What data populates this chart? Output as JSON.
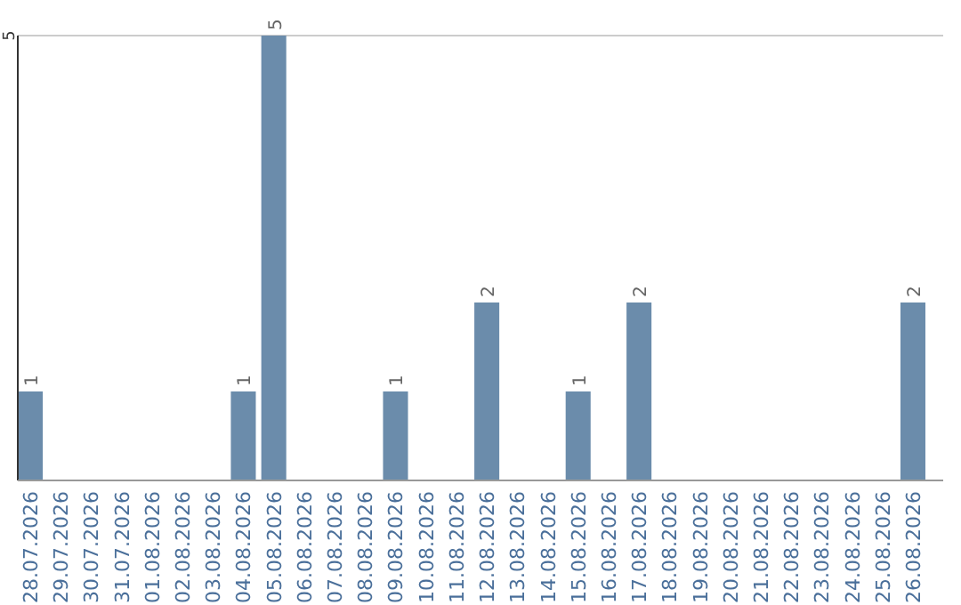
{
  "chart_data": {
    "type": "bar",
    "categories": [
      "28.07.2026",
      "29.07.2026",
      "30.07.2026",
      "31.07.2026",
      "01.08.2026",
      "02.08.2026",
      "03.08.2026",
      "04.08.2026",
      "05.08.2026",
      "06.08.2026",
      "07.08.2026",
      "08.08.2026",
      "09.08.2026",
      "10.08.2026",
      "11.08.2026",
      "12.08.2026",
      "13.08.2026",
      "14.08.2026",
      "15.08.2026",
      "16.08.2026",
      "17.08.2026",
      "18.08.2026",
      "19.08.2026",
      "20.08.2026",
      "21.08.2026",
      "22.08.2026",
      "23.08.2026",
      "24.08.2026",
      "25.08.2026",
      "26.08.2026"
    ],
    "values": [
      1,
      0,
      0,
      0,
      0,
      0,
      0,
      1,
      5,
      0,
      0,
      0,
      1,
      0,
      0,
      2,
      0,
      0,
      1,
      0,
      2,
      0,
      0,
      0,
      0,
      0,
      0,
      0,
      0,
      2
    ],
    "value_labels": [
      "1",
      null,
      null,
      null,
      null,
      null,
      null,
      "1",
      "5",
      null,
      null,
      null,
      "1",
      null,
      null,
      "2",
      null,
      null,
      "1",
      null,
      "2",
      null,
      null,
      null,
      null,
      null,
      null,
      null,
      null,
      "2"
    ],
    "color": "#6b8cab",
    "ylim": [
      0,
      5
    ],
    "yticks": [
      5
    ],
    "ref_lines": [
      {
        "axis": "y",
        "value": 5,
        "color": "#cccccc"
      }
    ]
  }
}
